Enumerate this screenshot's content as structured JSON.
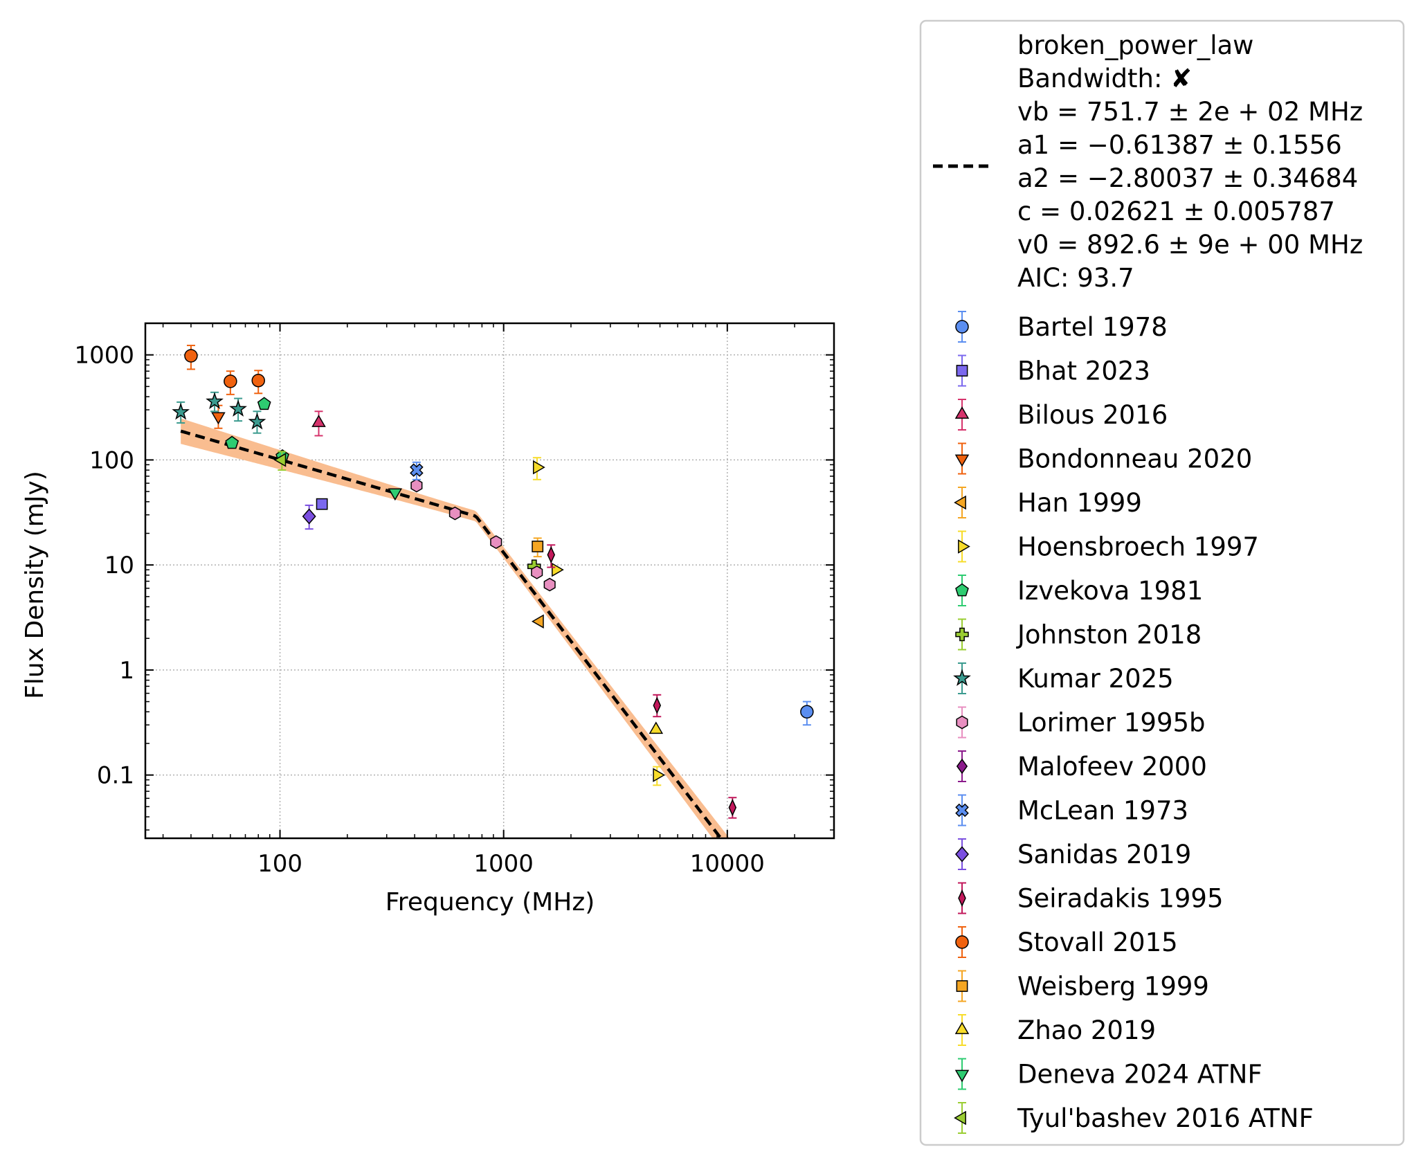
{
  "chart_data": {
    "type": "scatter",
    "title": "",
    "xlabel": "Frequency (MHz)",
    "ylabel": "Flux Density (mJy)",
    "x_scale": "log",
    "y_scale": "log",
    "xlim": [
      25,
      30000
    ],
    "ylim": [
      0.025,
      2000
    ],
    "x_ticks": [
      100,
      1000,
      10000
    ],
    "x_tick_labels": [
      "100",
      "1000",
      "10000"
    ],
    "y_ticks": [
      0.1,
      1,
      10,
      100,
      1000
    ],
    "y_tick_labels": [
      "0.1",
      "1",
      "10",
      "100",
      "1000"
    ],
    "grid": true,
    "legend_position": "outside-right",
    "fit": {
      "legend_lines": [
        "broken_power_law",
        "Bandwidth: ✘",
        "vb = 751.7 ± 2e + 02 MHz",
        "a1 = −0.61387 ± 0.1556",
        "a2 = −2.80037 ± 0.34684",
        "c = 0.02621 ± 0.005787",
        "v0 = 892.6 ± 9e + 00 MHz",
        "AIC: 93.7"
      ],
      "vb": 751.7,
      "a1": -0.61387,
      "a2": -2.80037,
      "c": 0.02621,
      "v0": 892.6,
      "color": "#000000",
      "band_color": "#f9b98a"
    },
    "series": [
      {
        "name": "Bartel 1978",
        "marker": "circle",
        "color": "#5b8ef0",
        "points": [
          {
            "x": 22700,
            "y": 0.4,
            "err": [
              0.1,
              0.1
            ]
          }
        ]
      },
      {
        "name": "Bhat 2023",
        "marker": "square",
        "color": "#7b68ee",
        "points": [
          {
            "x": 154,
            "y": 38,
            "err": [
              0,
              0
            ]
          }
        ]
      },
      {
        "name": "Bilous 2016",
        "marker": "triangle-up",
        "color": "#d6336c",
        "points": [
          {
            "x": 149,
            "y": 225,
            "err": [
              55,
              65
            ]
          }
        ]
      },
      {
        "name": "Bondonneau 2020",
        "marker": "triangle-down",
        "color": "#f0620f",
        "points": [
          {
            "x": 53,
            "y": 260,
            "err": [
              60,
              70
            ]
          }
        ]
      },
      {
        "name": "Han 1999",
        "marker": "triangle-left",
        "color": "#f5a623",
        "points": [
          {
            "x": 1450,
            "y": 2.9,
            "err": [
              0,
              0
            ]
          }
        ]
      },
      {
        "name": "Hoensbroech 1997",
        "marker": "triangle-right",
        "color": "#f7dc2a",
        "points": [
          {
            "x": 1410,
            "y": 85,
            "err": [
              20,
              20
            ]
          },
          {
            "x": 1710,
            "y": 9,
            "err": [
              0,
              0
            ]
          },
          {
            "x": 4850,
            "y": 0.1,
            "err": [
              0.02,
              0.02
            ]
          }
        ]
      },
      {
        "name": "Izvekova 1981",
        "marker": "pentagon",
        "color": "#2ecc71",
        "points": [
          {
            "x": 61,
            "y": 145,
            "err": [
              0,
              0
            ]
          },
          {
            "x": 85,
            "y": 340,
            "err": [
              0,
              0
            ]
          },
          {
            "x": 102.5,
            "y": 108,
            "err": [
              0,
              0
            ]
          }
        ]
      },
      {
        "name": "Johnston 2018",
        "marker": "plus",
        "color": "#9acd32",
        "points": [
          {
            "x": 1369,
            "y": 9.7,
            "err": [
              0,
              0
            ]
          }
        ]
      },
      {
        "name": "Kumar 2025",
        "marker": "star",
        "color": "#3b9b8f",
        "points": [
          {
            "x": 36,
            "y": 285,
            "err": [
              60,
              70
            ]
          },
          {
            "x": 51,
            "y": 360,
            "err": [
              70,
              80
            ]
          },
          {
            "x": 65,
            "y": 305,
            "err": [
              70,
              80
            ]
          },
          {
            "x": 79,
            "y": 230,
            "err": [
              50,
              60
            ]
          }
        ]
      },
      {
        "name": "Lorimer 1995b",
        "marker": "hexagon",
        "color": "#e88fc0",
        "points": [
          {
            "x": 408,
            "y": 57,
            "err": [
              0,
              0
            ]
          },
          {
            "x": 606,
            "y": 31,
            "err": [
              0,
              0
            ]
          },
          {
            "x": 925,
            "y": 16.5,
            "err": [
              0,
              0
            ]
          },
          {
            "x": 1408,
            "y": 8.5,
            "err": [
              0,
              0
            ]
          },
          {
            "x": 1606,
            "y": 6.5,
            "err": [
              0,
              0
            ]
          }
        ]
      },
      {
        "name": "Malofeev 2000",
        "marker": "diamond-bold",
        "color": "#8b1a8b",
        "points": []
      },
      {
        "name": "McLean 1973",
        "marker": "x",
        "color": "#5b8ef0",
        "points": [
          {
            "x": 408,
            "y": 80,
            "err": [
              15,
              15
            ]
          }
        ]
      },
      {
        "name": "Sanidas 2019",
        "marker": "diamond",
        "color": "#7b4fe0",
        "points": [
          {
            "x": 135,
            "y": 29,
            "err": [
              7,
              8
            ]
          }
        ]
      },
      {
        "name": "Seiradakis 1995",
        "marker": "thin-diamond",
        "color": "#c2185b",
        "points": [
          {
            "x": 1630,
            "y": 12.5,
            "err": [
              3,
              3
            ]
          },
          {
            "x": 4850,
            "y": 0.46,
            "err": [
              0.1,
              0.12
            ]
          },
          {
            "x": 10550,
            "y": 0.049,
            "err": [
              0.01,
              0.012
            ]
          }
        ]
      },
      {
        "name": "Stovall 2015",
        "marker": "circle",
        "color": "#f0620f",
        "points": [
          {
            "x": 40,
            "y": 980,
            "err": [
              250,
              250
            ]
          },
          {
            "x": 60,
            "y": 560,
            "err": [
              140,
              140
            ]
          },
          {
            "x": 80,
            "y": 570,
            "err": [
              140,
              140
            ]
          }
        ]
      },
      {
        "name": "Weisberg 1999",
        "marker": "square",
        "color": "#f5a623",
        "points": [
          {
            "x": 1418,
            "y": 15,
            "err": [
              3,
              3
            ]
          }
        ]
      },
      {
        "name": "Zhao 2019",
        "marker": "triangle-up-open",
        "color": "#f7dc2a",
        "points": [
          {
            "x": 4800,
            "y": 0.27,
            "err": [
              0,
              0
            ]
          }
        ]
      },
      {
        "name": "Deneva 2024 ATNF",
        "marker": "triangle-down",
        "color": "#2ecc71",
        "points": [
          {
            "x": 327,
            "y": 49,
            "err": [
              0,
              0
            ]
          }
        ]
      },
      {
        "name": "Tyul'bashev 2016 ATNF",
        "marker": "triangle-left",
        "color": "#9acd32",
        "points": [
          {
            "x": 102,
            "y": 100,
            "err": [
              20,
              20
            ]
          }
        ]
      }
    ]
  }
}
